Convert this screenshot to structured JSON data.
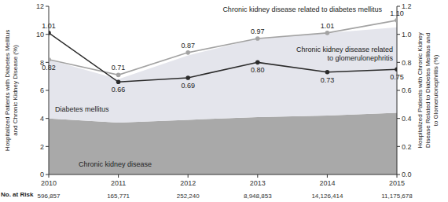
{
  "chart_data": {
    "type": "area",
    "x": [
      2010,
      2011,
      2012,
      2013,
      2014,
      2015
    ],
    "xlim": [
      2010,
      2015
    ],
    "xticks": [
      2010,
      2011,
      2012,
      2013,
      2014,
      2015
    ],
    "ylabel": "Hospitalized Patients with Diabetes Mellitus and Chronic Kidney Disease (%)",
    "y2label": "Hospitalized Patients with Chronic Kidney Disease Related to Diabetes Mellitus and to Glomerulonephritis (%)",
    "ylim": [
      0,
      12
    ],
    "yticks": [
      0,
      2,
      4,
      6,
      8,
      10,
      12
    ],
    "y2lim": [
      0,
      1.2
    ],
    "y2ticks": [
      {
        "value": 0,
        "label": "0.0"
      },
      0.2,
      0.4,
      0.6,
      0.8,
      {
        "value": 1,
        "label": "1.0"
      },
      1.2
    ],
    "stacked": true,
    "series": [
      {
        "name": "Chronic kidney disease",
        "type": "area",
        "color": "#a9a9a9",
        "values": [
          4.0,
          3.7,
          3.9,
          4.1,
          4.2,
          4.4
        ]
      },
      {
        "name": "Diabetes mellitus",
        "type": "area",
        "color": "#e4e5ec",
        "values": [
          4.2,
          3.1,
          4.6,
          5.6,
          5.9,
          6.1
        ]
      },
      {
        "name": "Chronic kidney disease related to diabetes mellitus",
        "type": "line",
        "axis": "y2",
        "color": "#a3a3a3",
        "marker": "circle",
        "data_labels": true,
        "values": [
          0.82,
          0.71,
          0.87,
          0.97,
          1.01,
          1.1
        ],
        "value_labels": [
          "0.82",
          "0.71",
          "0.87",
          "0.97",
          "1.01",
          "1.10"
        ]
      },
      {
        "name": "Chronic kidney disease related to glomerulonephritis",
        "type": "line",
        "axis": "y2",
        "color": "#2b2b2b",
        "marker": "circle",
        "data_labels": true,
        "values": [
          1.01,
          0.66,
          0.69,
          0.8,
          0.73,
          0.75
        ],
        "value_labels": [
          "1.01",
          "0.66",
          "0.69",
          "0.80",
          "0.73",
          "0.75"
        ]
      }
    ],
    "no_at_risk": {
      "label": "No. at Risk",
      "values": [
        "596,857",
        "165,771",
        "252,240",
        "8,948,853",
        "14,126,414",
        "11,175,678"
      ]
    }
  }
}
